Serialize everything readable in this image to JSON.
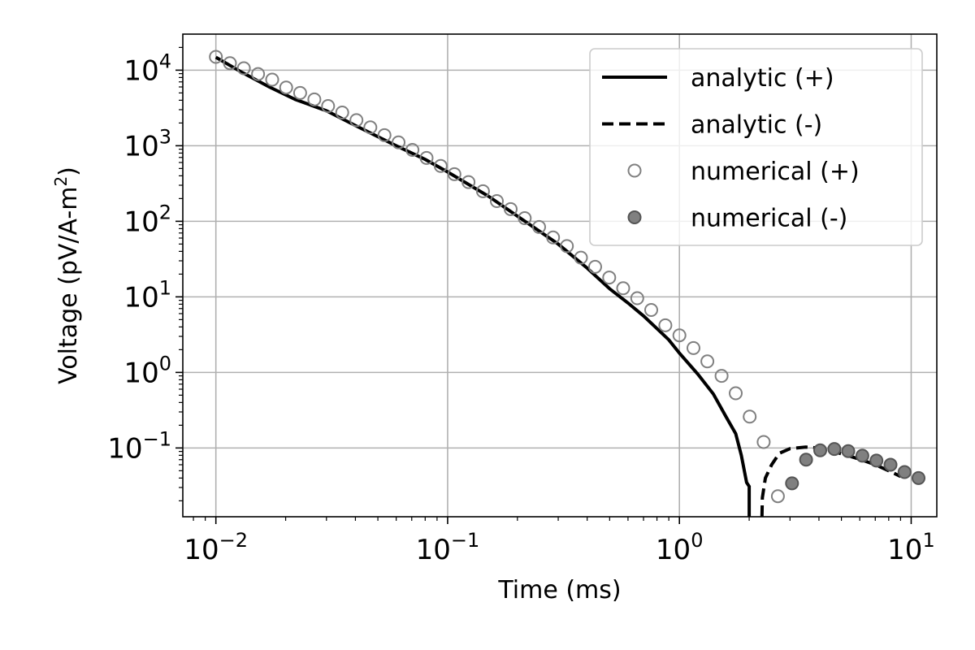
{
  "chart_data": {
    "type": "line",
    "title": "",
    "xlabel": "Time (ms)",
    "ylabel_text": "Voltage (pV/A-m",
    "ylabel_exp": "2",
    "ylabel_close": ")",
    "xscale": "log",
    "yscale": "log",
    "xlim": [
      0.0072,
      12.9
    ],
    "ylim": [
      0.0123,
      30000
    ],
    "grid": true,
    "legend_position": "upper right",
    "x_ticks": [
      {
        "base": "10",
        "exp": "−2",
        "value": 0.01
      },
      {
        "base": "10",
        "exp": "−1",
        "value": 0.1
      },
      {
        "base": "10",
        "exp": "0",
        "value": 1
      },
      {
        "base": "10",
        "exp": "1",
        "value": 10
      }
    ],
    "y_ticks": [
      {
        "base": "10",
        "exp": "4",
        "value": 10000
      },
      {
        "base": "10",
        "exp": "3",
        "value": 1000
      },
      {
        "base": "10",
        "exp": "2",
        "value": 100
      },
      {
        "base": "10",
        "exp": "1",
        "value": 10
      },
      {
        "base": "10",
        "exp": "0",
        "value": 1
      },
      {
        "base": "10",
        "exp": "−1",
        "value": 0.1
      }
    ],
    "colors": {
      "analytic": "#000000",
      "numerical_pos_edge": "#808080",
      "numerical_neg_fill": "#808080",
      "grid": "#b0b0b0"
    },
    "series": [
      {
        "name": "analytic (+)",
        "style": "solid",
        "points": [
          [
            0.01,
            14800
          ],
          [
            0.013,
            9300
          ],
          [
            0.017,
            6000
          ],
          [
            0.022,
            4100
          ],
          [
            0.03,
            2900
          ],
          [
            0.04,
            1850
          ],
          [
            0.06,
            1000
          ],
          [
            0.08,
            660
          ],
          [
            0.1,
            450
          ],
          [
            0.15,
            215
          ],
          [
            0.2,
            117
          ],
          [
            0.3,
            50
          ],
          [
            0.4,
            24
          ],
          [
            0.5,
            12.8
          ],
          [
            0.6,
            8.3
          ],
          [
            0.7,
            5.6
          ],
          [
            0.8,
            3.8
          ],
          [
            0.9,
            2.7
          ],
          [
            1.0,
            1.8
          ],
          [
            1.2,
            0.95
          ],
          [
            1.4,
            0.52
          ],
          [
            1.6,
            0.25
          ],
          [
            1.75,
            0.155
          ],
          [
            1.85,
            0.08
          ],
          [
            1.95,
            0.035
          ],
          [
            2.0,
            0.031
          ],
          [
            2.0,
            0.0123
          ]
        ]
      },
      {
        "name": "analytic (-)",
        "style": "dashed",
        "points": [
          [
            2.27,
            0.0123
          ],
          [
            2.28,
            0.022
          ],
          [
            2.35,
            0.04
          ],
          [
            2.5,
            0.06
          ],
          [
            2.7,
            0.085
          ],
          [
            3.0,
            0.098
          ],
          [
            3.5,
            0.103
          ],
          [
            4.0,
            0.1
          ],
          [
            5.0,
            0.084
          ],
          [
            6.0,
            0.071
          ],
          [
            7.0,
            0.06
          ],
          [
            8.0,
            0.05
          ],
          [
            9.0,
            0.042
          ]
        ]
      },
      {
        "name": "numerical (+)",
        "style": "open-circle",
        "points": [
          [
            0.01,
            15000
          ],
          [
            0.0115,
            12400
          ],
          [
            0.0132,
            10600
          ],
          [
            0.0152,
            8900
          ],
          [
            0.0175,
            7500
          ],
          [
            0.0201,
            5900
          ],
          [
            0.0231,
            5000
          ],
          [
            0.0266,
            4100
          ],
          [
            0.0305,
            3350
          ],
          [
            0.0351,
            2750
          ],
          [
            0.0404,
            2180
          ],
          [
            0.0464,
            1750
          ],
          [
            0.0534,
            1380
          ],
          [
            0.0614,
            1110
          ],
          [
            0.0705,
            880
          ],
          [
            0.0811,
            690
          ],
          [
            0.0933,
            540
          ],
          [
            0.107,
            420
          ],
          [
            0.123,
            330
          ],
          [
            0.142,
            250
          ],
          [
            0.163,
            185
          ],
          [
            0.187,
            145
          ],
          [
            0.215,
            110
          ],
          [
            0.248,
            84
          ],
          [
            0.285,
            61
          ],
          [
            0.327,
            47
          ],
          [
            0.376,
            33
          ],
          [
            0.433,
            25
          ],
          [
            0.498,
            18
          ],
          [
            0.572,
            13
          ],
          [
            0.658,
            9.6
          ],
          [
            0.756,
            6.7
          ],
          [
            0.87,
            4.2
          ],
          [
            1.0,
            3.1
          ],
          [
            1.15,
            2.1
          ],
          [
            1.32,
            1.4
          ],
          [
            1.52,
            0.9
          ],
          [
            1.75,
            0.53
          ],
          [
            2.01,
            0.26
          ],
          [
            2.31,
            0.12
          ],
          [
            2.66,
            0.023
          ]
        ]
      },
      {
        "name": "numerical (-)",
        "style": "filled-circle",
        "points": [
          [
            3.06,
            0.034
          ],
          [
            3.52,
            0.07
          ],
          [
            4.05,
            0.093
          ],
          [
            4.66,
            0.097
          ],
          [
            5.35,
            0.091
          ],
          [
            6.16,
            0.079
          ],
          [
            7.08,
            0.068
          ],
          [
            8.14,
            0.06
          ],
          [
            9.36,
            0.048
          ],
          [
            10.76,
            0.04
          ]
        ]
      }
    ],
    "legend": [
      {
        "label": "analytic (+)",
        "style": "solid"
      },
      {
        "label": "analytic (-)",
        "style": "dashed"
      },
      {
        "label": "numerical (+)",
        "style": "open-circle"
      },
      {
        "label": "numerical (-)",
        "style": "filled-circle"
      }
    ]
  }
}
